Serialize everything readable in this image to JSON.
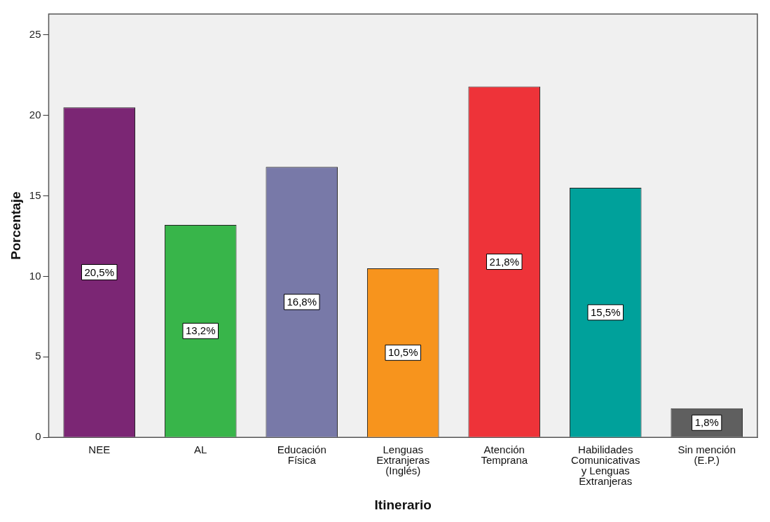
{
  "chart_data": {
    "type": "bar",
    "xlabel": "Itinerario",
    "ylabel": "Porcentaje",
    "categories": [
      "NEE",
      "AL",
      "Educación Física",
      "Lenguas Extranjeras (Inglés)",
      "Atención Temprana",
      "Habilidades Comunicativas y Lenguas Extranjeras",
      "Sin mención (E.P.)"
    ],
    "values": [
      20.5,
      13.2,
      16.8,
      10.5,
      21.8,
      15.5,
      1.8
    ],
    "colors": [
      "#7b2674",
      "#38b54a",
      "#7879a8",
      "#f7941d",
      "#ee3339",
      "#00a19b",
      "#5f5f5f"
    ],
    "value_labels": [
      "20,5%",
      "13,2%",
      "16,8%",
      "10,5%",
      "21,8%",
      "15,5%",
      "1,8%"
    ],
    "ylim": [
      0,
      26.3
    ],
    "yticks": [
      0,
      5,
      10,
      15,
      20,
      25
    ],
    "grid": false,
    "legend": false
  }
}
